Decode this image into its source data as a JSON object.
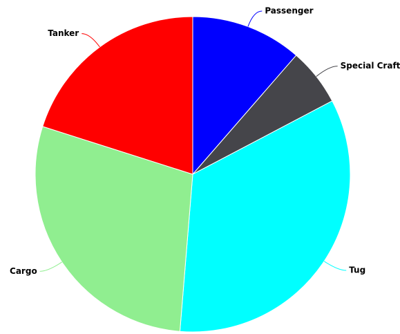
{
  "chart_data": {
    "type": "pie",
    "categories": [
      "Passenger",
      "Special Craft",
      "Tug",
      "Cargo",
      "Tanker"
    ],
    "values": [
      11.4,
      5.9,
      34,
      28.6,
      20.1
    ],
    "colors": [
      "#0000ff",
      "#45454a",
      "#00ffff",
      "#90ee90",
      "#ff0000"
    ]
  }
}
